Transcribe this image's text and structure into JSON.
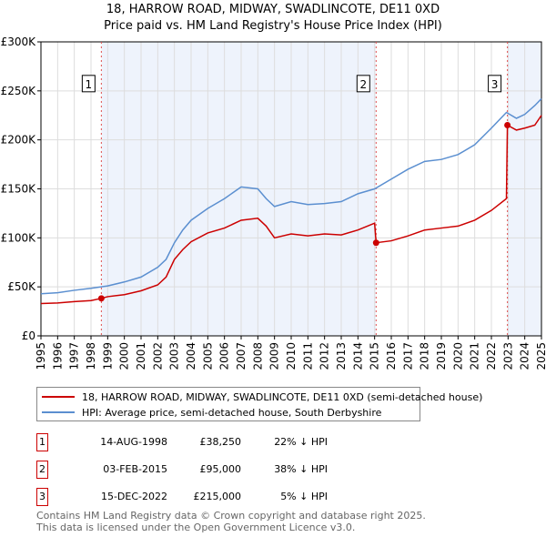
{
  "chart_data": {
    "type": "line",
    "title": "18, HARROW ROAD, MIDWAY, SWADLINCOTE, DE11 0XD",
    "subtitle": "Price paid vs. HM Land Registry's House Price Index (HPI)",
    "xlim": [
      1995,
      2025
    ],
    "ylim": [
      0,
      300000
    ],
    "yticks": [
      {
        "v": 0,
        "l": "£0"
      },
      {
        "v": 50000,
        "l": "£50K"
      },
      {
        "v": 100000,
        "l": "£100K"
      },
      {
        "v": 150000,
        "l": "£150K"
      },
      {
        "v": 200000,
        "l": "£200K"
      },
      {
        "v": 250000,
        "l": "£250K"
      },
      {
        "v": 300000,
        "l": "£300K"
      }
    ],
    "xticks": [
      "1995",
      "1996",
      "1997",
      "1998",
      "1999",
      "2000",
      "2001",
      "2002",
      "2003",
      "2004",
      "2005",
      "2006",
      "2007",
      "2008",
      "2009",
      "2010",
      "2011",
      "2012",
      "2013",
      "2014",
      "2015",
      "2016",
      "2017",
      "2018",
      "2019",
      "2020",
      "2021",
      "2022",
      "2023",
      "2024",
      "2025"
    ],
    "series": [
      {
        "name": "18, HARROW ROAD, MIDWAY, SWADLINCOTE, DE11 0XD (semi-detached house)",
        "color": "#cc0000",
        "x": [
          1995,
          1996,
          1997,
          1998,
          1998.62,
          1999,
          2000,
          2001,
          2002,
          2002.5,
          2003,
          2003.5,
          2004,
          2005,
          2006,
          2007,
          2008,
          2008.5,
          2009,
          2010,
          2011,
          2012,
          2013,
          2014,
          2015.0,
          2015.09,
          2016,
          2017,
          2018,
          2019,
          2020,
          2021,
          2022,
          2022.9,
          2022.96,
          2023.5,
          2024,
          2024.6,
          2025
        ],
        "y": [
          33000,
          33500,
          35000,
          36000,
          38250,
          40000,
          42000,
          46000,
          52000,
          60000,
          78000,
          88000,
          96000,
          105000,
          110000,
          118000,
          120000,
          112000,
          100000,
          104000,
          102000,
          104000,
          103000,
          108000,
          115000,
          95000,
          97000,
          102000,
          108000,
          110000,
          112000,
          118000,
          128000,
          140000,
          215000,
          210000,
          212000,
          215000,
          225000
        ]
      },
      {
        "name": "HPI: Average price, semi-detached house, South Derbyshire",
        "color": "#5b8fd0",
        "x": [
          1995,
          1996,
          1997,
          1998,
          1999,
          2000,
          2001,
          2002,
          2002.5,
          2003,
          2003.5,
          2004,
          2005,
          2006,
          2007,
          2008,
          2008.5,
          2009,
          2010,
          2011,
          2012,
          2013,
          2014,
          2015,
          2016,
          2017,
          2018,
          2019,
          2020,
          2021,
          2022,
          2022.9,
          2023.5,
          2024,
          2024.6,
          2025
        ],
        "y": [
          43000,
          44000,
          46500,
          48500,
          51000,
          55000,
          60000,
          70000,
          78000,
          95000,
          108000,
          118000,
          130000,
          140000,
          152000,
          150000,
          140000,
          132000,
          137000,
          134000,
          135000,
          137000,
          145000,
          150000,
          160000,
          170000,
          178000,
          180000,
          185000,
          195000,
          212000,
          228000,
          222000,
          226000,
          235000,
          242000
        ]
      }
    ],
    "sales": [
      {
        "label": "1",
        "x": 1998.62,
        "y": 38250
      },
      {
        "label": "2",
        "x": 2015.09,
        "y": 95000
      },
      {
        "label": "3",
        "x": 2022.96,
        "y": 215000
      }
    ],
    "shaded": [
      [
        1998.62,
        2015.09
      ],
      [
        2022.96,
        2025
      ]
    ]
  },
  "legend": {
    "red": "18, HARROW ROAD, MIDWAY, SWADLINCOTE, DE11 0XD (semi-detached house)",
    "blue": "HPI: Average price, semi-detached house, South Derbyshire"
  },
  "transactions": [
    {
      "n": "1",
      "date": "14-AUG-1998",
      "price": "£38,250",
      "hpi": "22% ↓ HPI"
    },
    {
      "n": "2",
      "date": "03-FEB-2015",
      "price": "£95,000",
      "hpi": "38% ↓ HPI"
    },
    {
      "n": "3",
      "date": "15-DEC-2022",
      "price": "£215,000",
      "hpi": "5% ↓ HPI"
    }
  ],
  "footer": [
    "Contains HM Land Registry data © Crown copyright and database right 2025.",
    "This data is licensed under the Open Government Licence v3.0."
  ]
}
